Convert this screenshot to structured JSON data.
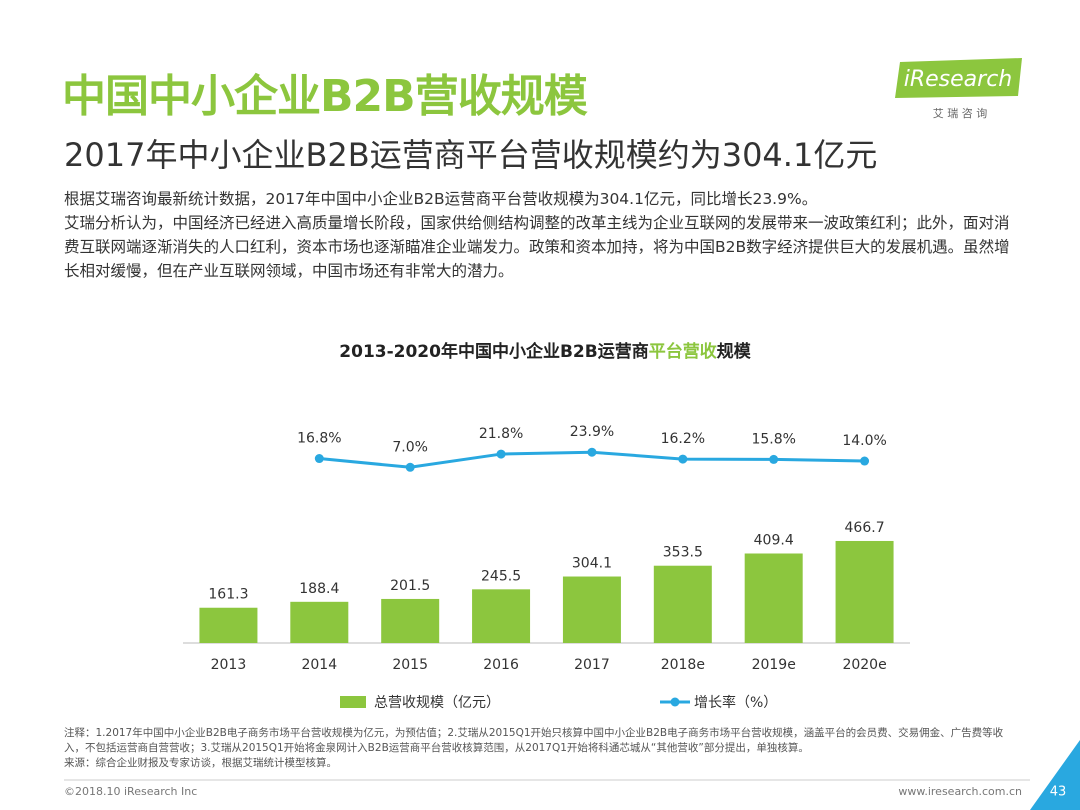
{
  "header": {
    "title": "中国中小企业B2B营收规模",
    "subtitle": "2017年中小企业B2B运营商平台营收规模约为304.1亿元",
    "logo": "iResearch",
    "logo_sub": "艾 瑞 咨 询"
  },
  "body": [
    "根据艾瑞咨询最新统计数据，2017年中国中小企业B2B运营商平台营收规模为304.1亿元，同比增长23.9%。",
    "艾瑞分析认为，中国经济已经进入高质量增长阶段，国家供给侧结构调整的改革主线为企业互联网的发展带来一波政策红利；此外，面对消费互联网端逐渐消失的人口红利，资本市场也逐渐瞄准企业端发力。政策和资本加持，将为中国B2B数字经济提供巨大的发展机遇。虽然增长相对缓慢，但在产业互联网领域，中国市场还有非常大的潜力。"
  ],
  "chart_data": {
    "type": "bar_line",
    "title_parts": [
      "2013-2020年中国中小企业B2B运营商",
      "平台营收",
      "规模"
    ],
    "categories": [
      "2013",
      "2014",
      "2015",
      "2016",
      "2017",
      "2018e",
      "2019e",
      "2020e"
    ],
    "series": [
      {
        "name": "总营收规模（亿元）",
        "type": "bar",
        "color": "#8cc63e",
        "values": [
          161.3,
          188.4,
          201.5,
          245.5,
          304.1,
          353.5,
          409.4,
          466.7
        ]
      },
      {
        "name": "增长率（%）",
        "type": "line",
        "axis": "y2",
        "color": "#29a8e0",
        "values": [
          null,
          16.8,
          7.0,
          21.8,
          23.9,
          16.2,
          15.8,
          14.0
        ],
        "value_labels": [
          null,
          "16.8%",
          "7.0%",
          "21.8%",
          "23.9%",
          "16.2%",
          "15.8%",
          "14.0%"
        ]
      }
    ],
    "ylim": [
      0,
      1020
    ],
    "y2lim": [
      -190,
      60
    ]
  },
  "notes": {
    "note": "注释：1.2017年中国中小企业B2B电子商务市场平台营收规模为亿元，为预估值；2.艾瑞从2015Q1开始只核算中国中小企业B2B电子商务市场平台营收规模，涵盖平台的会员费、交易佣金、广告费等收入，不包括运营商自营营收；3.艾瑞从2015Q1开始将金泉网计入B2B运营商平台营收核算范围，从2017Q1开始将科通芯城从“其他营收”部分提出，单独核算。",
    "source": "来源：综合企业财报及专家访谈，根据艾瑞统计模型核算。"
  },
  "footer": {
    "copyright": "©2018.10 iResearch Inc",
    "website": "www.iresearch.com.cn",
    "page": "43"
  }
}
